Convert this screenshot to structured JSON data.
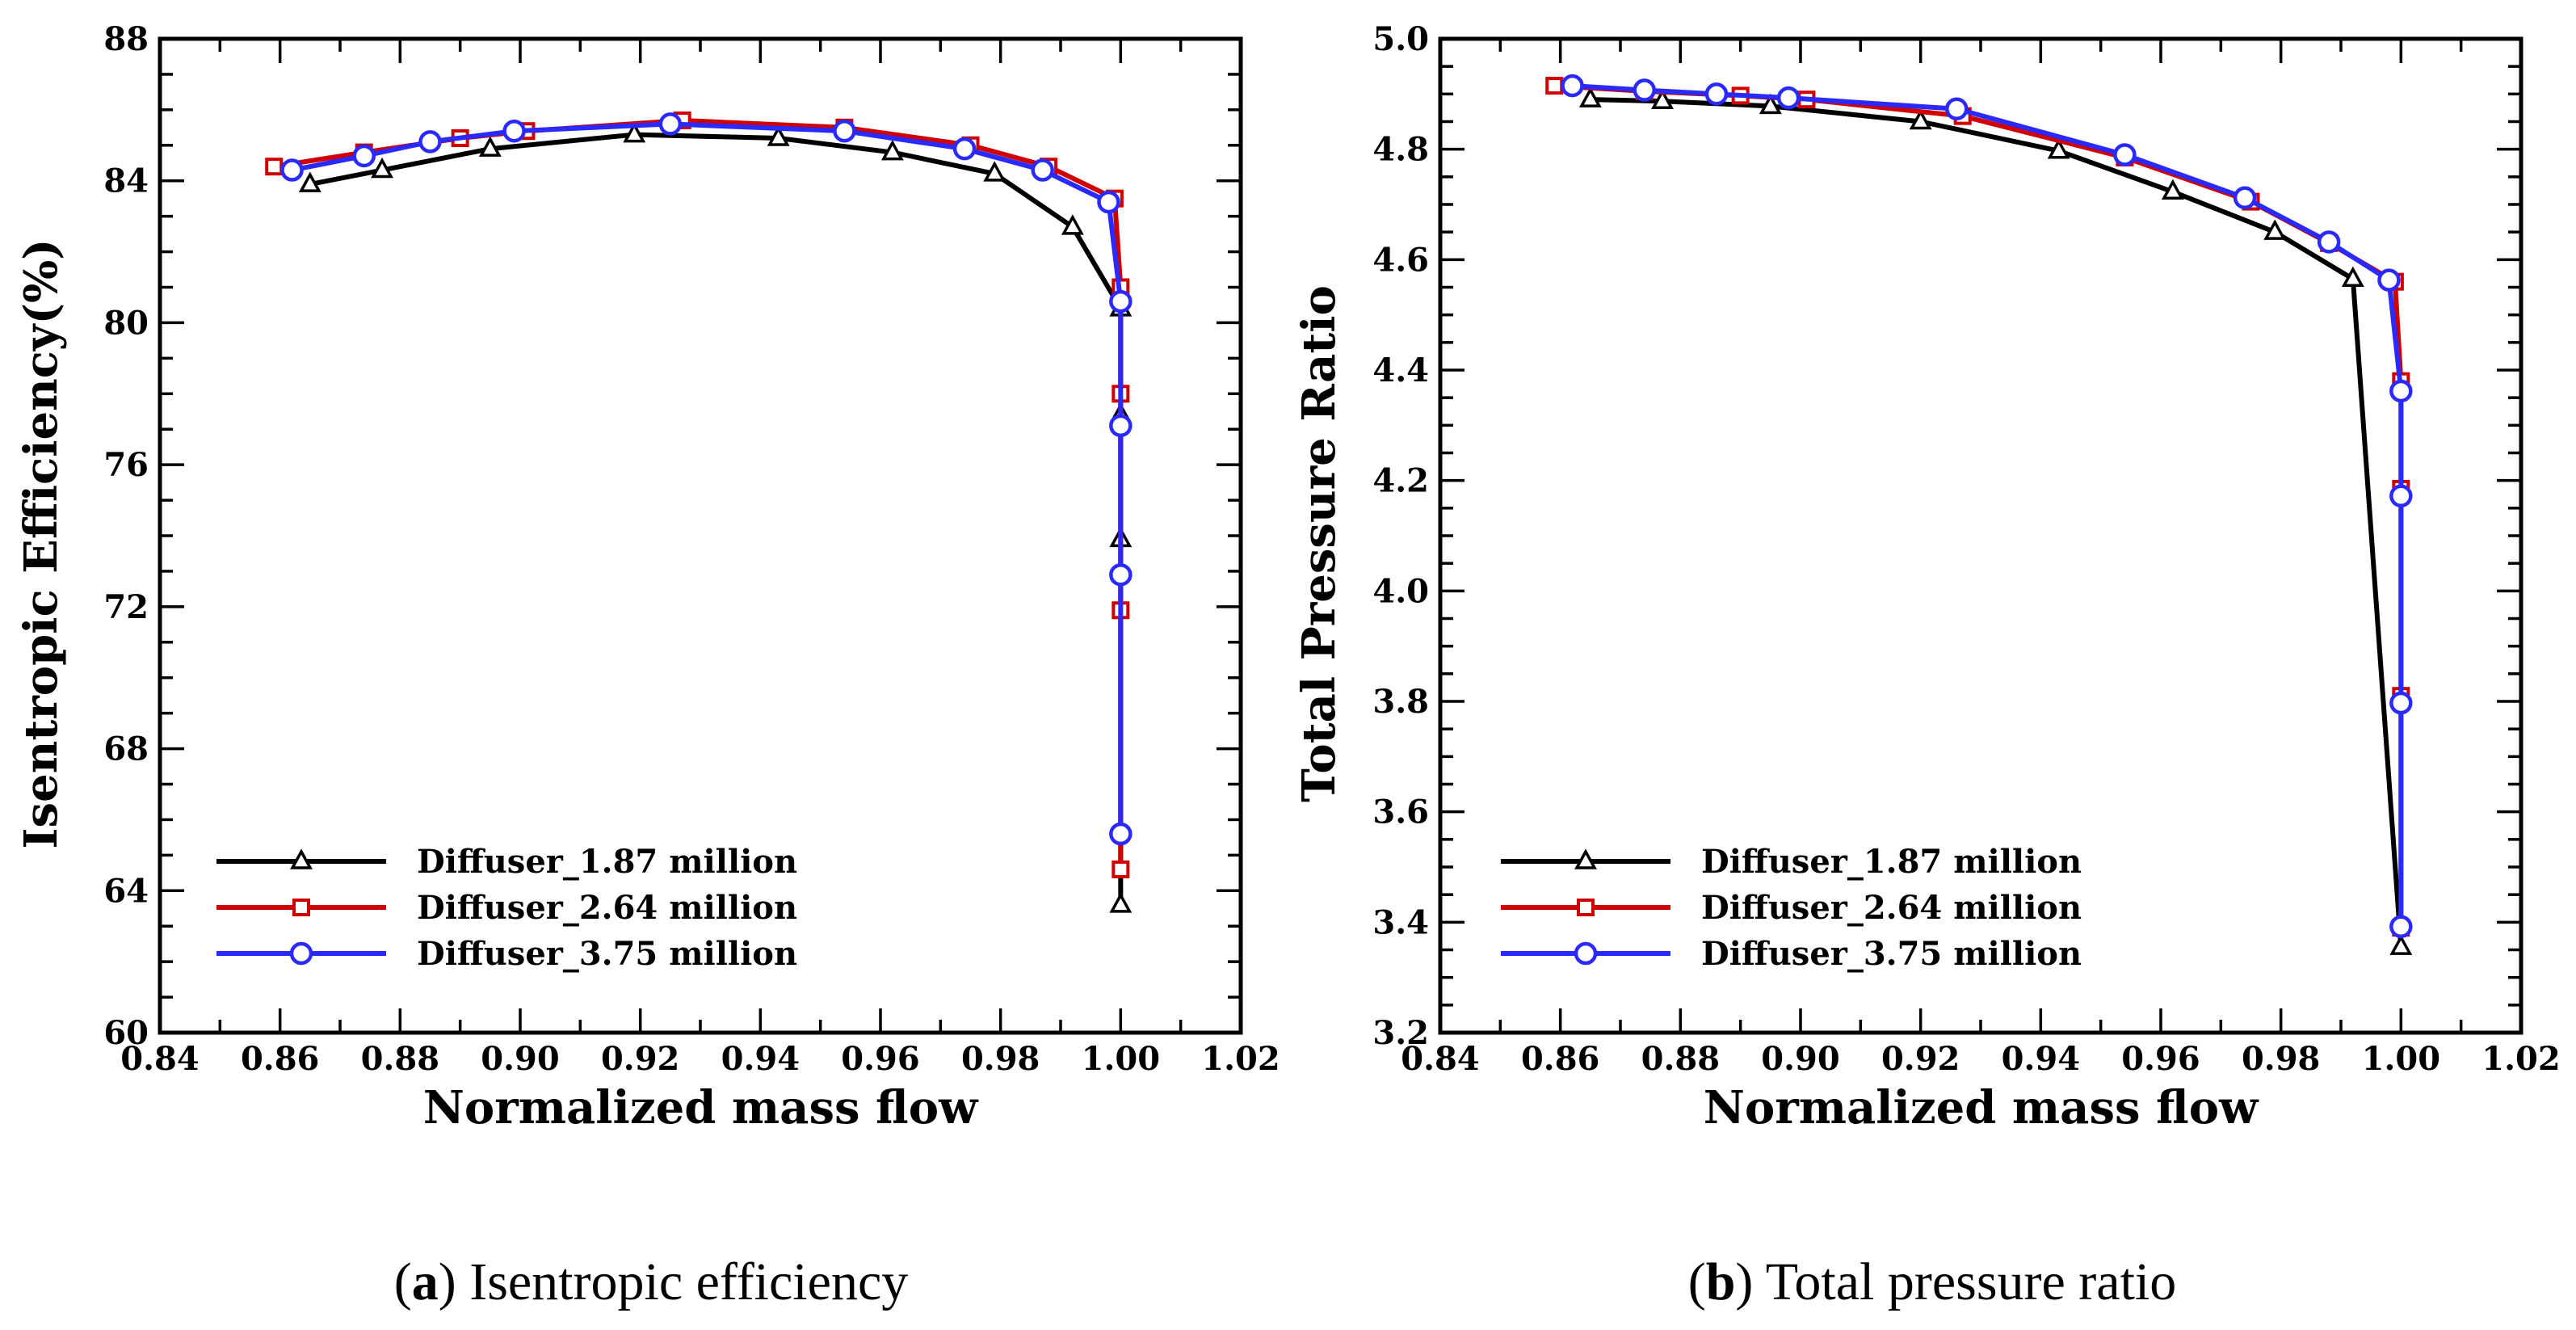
{
  "chart_data": [
    {
      "type": "line",
      "caption_letter": "a",
      "caption_text": "Isentropic efficiency",
      "xlabel": "Normalized mass flow",
      "ylabel": "Isentropic Efficiency(%)",
      "xlim": [
        0.84,
        1.02
      ],
      "ylim": [
        60,
        88
      ],
      "xticks": [
        0.84,
        0.86,
        0.88,
        0.9,
        0.92,
        0.94,
        0.96,
        0.98,
        1.0,
        1.02
      ],
      "yticks": [
        60,
        64,
        68,
        72,
        76,
        80,
        84,
        88
      ],
      "xtick_labels": [
        "0.84",
        "0.86",
        "0.88",
        "0.90",
        "0.92",
        "0.94",
        "0.96",
        "0.98",
        "1.00",
        "1.02"
      ],
      "ytick_labels": [
        "60",
        "64",
        "68",
        "72",
        "76",
        "80",
        "84",
        "88"
      ],
      "legend_position": "bottom-left",
      "series": [
        {
          "name": "Diffuser_1.87 million",
          "marker": "triangle",
          "color": "#000000",
          "x": [
            0.865,
            0.877,
            0.895,
            0.919,
            0.943,
            0.962,
            0.979,
            0.992,
            1.0,
            1.0,
            1.0,
            1.0
          ],
          "y": [
            83.9,
            84.3,
            84.9,
            85.3,
            85.2,
            84.8,
            84.2,
            82.7,
            80.4,
            77.4,
            73.9,
            63.6
          ]
        },
        {
          "name": "Diffuser_2.64 million",
          "marker": "square",
          "color": "#d00000",
          "x": [
            0.859,
            0.874,
            0.89,
            0.901,
            0.927,
            0.954,
            0.975,
            0.988,
            0.999,
            1.0,
            1.0,
            1.0,
            1.0
          ],
          "y": [
            84.4,
            84.8,
            85.2,
            85.4,
            85.7,
            85.5,
            85.0,
            84.4,
            83.5,
            81.0,
            78.0,
            71.9,
            64.6
          ]
        },
        {
          "name": "Diffuser_3.75 million",
          "marker": "circle",
          "color": "#2a2aff",
          "x": [
            0.862,
            0.874,
            0.885,
            0.899,
            0.925,
            0.954,
            0.974,
            0.987,
            0.998,
            1.0,
            1.0,
            1.0,
            1.0
          ],
          "y": [
            84.3,
            84.7,
            85.1,
            85.4,
            85.6,
            85.4,
            84.9,
            84.3,
            83.4,
            80.6,
            77.1,
            72.9,
            65.6
          ]
        }
      ]
    },
    {
      "type": "line",
      "caption_letter": "b",
      "caption_text": "Total pressure ratio",
      "xlabel": "Normalized mass flow",
      "ylabel": "Total Pressure Ratio",
      "xlim": [
        0.84,
        1.02
      ],
      "ylim": [
        3.2,
        5.0
      ],
      "xticks": [
        0.84,
        0.86,
        0.88,
        0.9,
        0.92,
        0.94,
        0.96,
        0.98,
        1.0,
        1.02
      ],
      "yticks": [
        3.2,
        3.4,
        3.6,
        3.8,
        4.0,
        4.2,
        4.4,
        4.6,
        4.8,
        5.0
      ],
      "xtick_labels": [
        "0.84",
        "0.86",
        "0.88",
        "0.90",
        "0.92",
        "0.94",
        "0.96",
        "0.98",
        "1.00",
        "1.02"
      ],
      "ytick_labels": [
        "3.2",
        "3.4",
        "3.6",
        "3.8",
        "4.0",
        "4.2",
        "4.4",
        "4.6",
        "4.8",
        "5.0"
      ],
      "legend_position": "bottom-left",
      "series": [
        {
          "name": "Diffuser_1.87 million",
          "marker": "triangle",
          "color": "#000000",
          "x": [
            0.865,
            0.877,
            0.895,
            0.92,
            0.943,
            0.962,
            0.979,
            0.992,
            1.0
          ],
          "y": [
            4.89,
            4.887,
            4.878,
            4.85,
            4.797,
            4.723,
            4.65,
            4.565,
            3.355
          ]
        },
        {
          "name": "Diffuser_2.64 million",
          "marker": "square",
          "color": "#d00000",
          "x": [
            0.859,
            0.874,
            0.89,
            0.901,
            0.927,
            0.954,
            0.975,
            0.988,
            0.999,
            1.0,
            1.0,
            1.0,
            1.0
          ],
          "y": [
            4.915,
            4.905,
            4.897,
            4.89,
            4.86,
            4.785,
            4.705,
            4.63,
            4.56,
            4.38,
            4.185,
            3.81,
            3.39
          ]
        },
        {
          "name": "Diffuser_3.75 million",
          "marker": "circle",
          "color": "#2a2aff",
          "x": [
            0.862,
            0.874,
            0.886,
            0.898,
            0.926,
            0.954,
            0.974,
            0.988,
            0.998,
            1.0,
            1.0,
            1.0,
            1.0
          ],
          "y": [
            4.915,
            4.907,
            4.9,
            4.893,
            4.873,
            4.79,
            4.712,
            4.632,
            4.563,
            4.362,
            4.172,
            3.797,
            3.392
          ]
        }
      ]
    }
  ]
}
